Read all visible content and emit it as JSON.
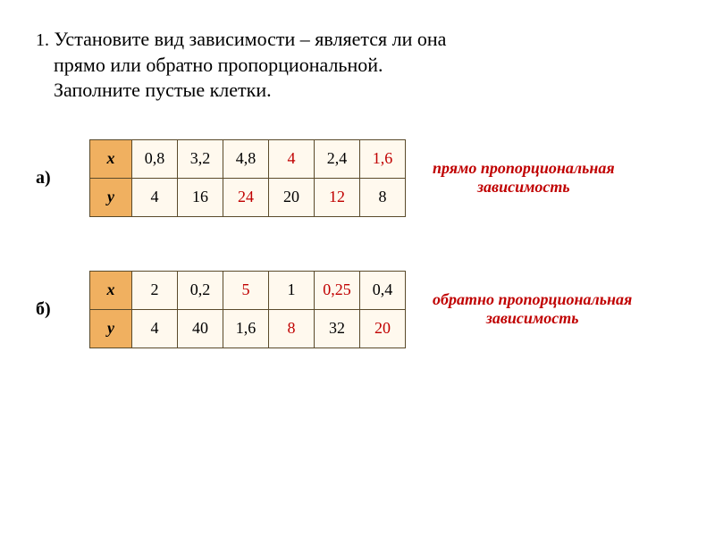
{
  "problem": {
    "number": "1.",
    "line1": "Установите вид зависимости – является ли она",
    "line2": "прямо или обратно пропорциональной.",
    "line3": "Заполните пустые клетки."
  },
  "tableA": {
    "label": "а)",
    "rowX": {
      "header": "x",
      "cells": [
        {
          "val": "0,8",
          "filled": false
        },
        {
          "val": "3,2",
          "filled": false
        },
        {
          "val": "4,8",
          "filled": false
        },
        {
          "val": "4",
          "filled": true
        },
        {
          "val": "2,4",
          "filled": false
        },
        {
          "val": "1,6",
          "filled": true
        }
      ]
    },
    "rowY": {
      "header": "y",
      "cells": [
        {
          "val": "4",
          "filled": false
        },
        {
          "val": "16",
          "filled": false
        },
        {
          "val": "24",
          "filled": true
        },
        {
          "val": "20",
          "filled": false
        },
        {
          "val": "12",
          "filled": true
        },
        {
          "val": "8",
          "filled": false
        }
      ]
    },
    "answer_l1": "прямо пропорциональная",
    "answer_l2": "зависимость"
  },
  "tableB": {
    "label": "б)",
    "rowX": {
      "header": "x",
      "cells": [
        {
          "val": "2",
          "filled": false
        },
        {
          "val": "0,2",
          "filled": false
        },
        {
          "val": "5",
          "filled": true
        },
        {
          "val": "1",
          "filled": false
        },
        {
          "val": "0,25",
          "filled": true
        },
        {
          "val": "0,4",
          "filled": false
        }
      ]
    },
    "rowY": {
      "header": "y",
      "cells": [
        {
          "val": "4",
          "filled": false
        },
        {
          "val": "40",
          "filled": false
        },
        {
          "val": "1,6",
          "filled": false
        },
        {
          "val": "8",
          "filled": true
        },
        {
          "val": "32",
          "filled": false
        },
        {
          "val": "20",
          "filled": true
        }
      ]
    },
    "answer_l1": "обратно пропорциональная",
    "answer_l2": "зависимость"
  },
  "style": {
    "cell_bg": "#fff9ee",
    "header_bg": "#f0b060",
    "border_color": "#5a4a2a",
    "answer_color": "#c00000",
    "filled_color": "#c00000"
  }
}
